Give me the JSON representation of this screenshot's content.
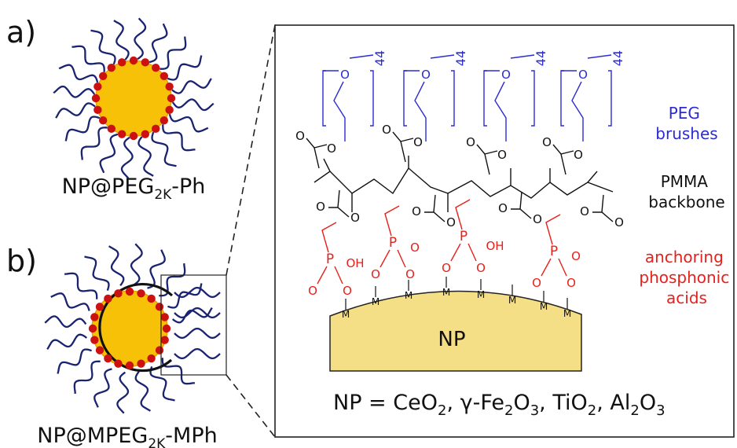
{
  "panels": {
    "a": {
      "letter": "a)",
      "name_prefix": "NP@PEG",
      "name_sub": "2K",
      "name_suffix": "-Ph"
    },
    "b": {
      "letter": "b)",
      "name_prefix": "NP@MPEG",
      "name_sub": "2K",
      "name_suffix": "-MPh"
    }
  },
  "zoom": {
    "peg_repeat": "44",
    "legend": {
      "peg_line1": "PEG",
      "peg_line2": "brushes",
      "pmma_line1": "PMMA",
      "pmma_line2": "backbone",
      "anchor_line1": "anchoring",
      "anchor_line2": "phosphonic",
      "anchor_line3": "acids"
    },
    "np_label": "NP",
    "metal_label": "M",
    "atoms": {
      "O": "O",
      "P": "P",
      "OH": "OH"
    },
    "formula": {
      "lead": "NP = CeO",
      "sub2": "2",
      "sep1": ", γ-Fe",
      "sub_fe2": "2",
      "o3": "O",
      "sub_fe3": "3",
      "sep2": ", TiO",
      "sub_ti": "2",
      "sep3": ", Al",
      "sub_al2": "2",
      "o3b": "O",
      "sub_al3": "3"
    }
  },
  "colors": {
    "peg": "#2b2bd6",
    "chain_dark": "#1a2370",
    "anchor": "#e8201c",
    "core": "#f7c108",
    "core_stroke": "#e8a200",
    "bead": "#cc1111",
    "np_surface": "#f4de86",
    "ink": "#111111"
  }
}
